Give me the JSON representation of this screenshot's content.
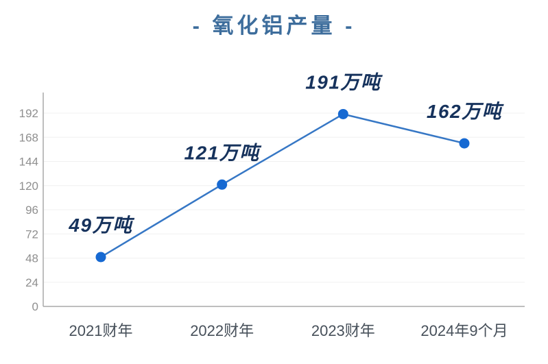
{
  "chart_data": {
    "type": "line",
    "title": "- 氧化铝产量 -",
    "categories": [
      "2021财年",
      "2022财年",
      "2023财年",
      "2024年9个月"
    ],
    "series": [
      {
        "name": "氧化铝产量",
        "values": [
          49,
          121,
          191,
          162
        ]
      }
    ],
    "point_labels": [
      "49万吨",
      "121万吨",
      "191万吨",
      "162万吨"
    ],
    "unit": "万吨",
    "yticks": [
      0,
      24,
      48,
      72,
      96,
      120,
      144,
      168,
      192
    ],
    "ylim": [
      0,
      212
    ],
    "xlabel": "",
    "ylabel": "",
    "grid": true,
    "legend": "none",
    "colors": {
      "title": "#3d6d9c",
      "line": "#3677c5",
      "point": "#1669d2",
      "point_label": "#16325c",
      "grid": "#f0f0f0",
      "axis": "#a9a9a9",
      "ytick_label": "#8f8f8f",
      "xtick_label": "#47505a",
      "background": "#ffffff"
    }
  }
}
